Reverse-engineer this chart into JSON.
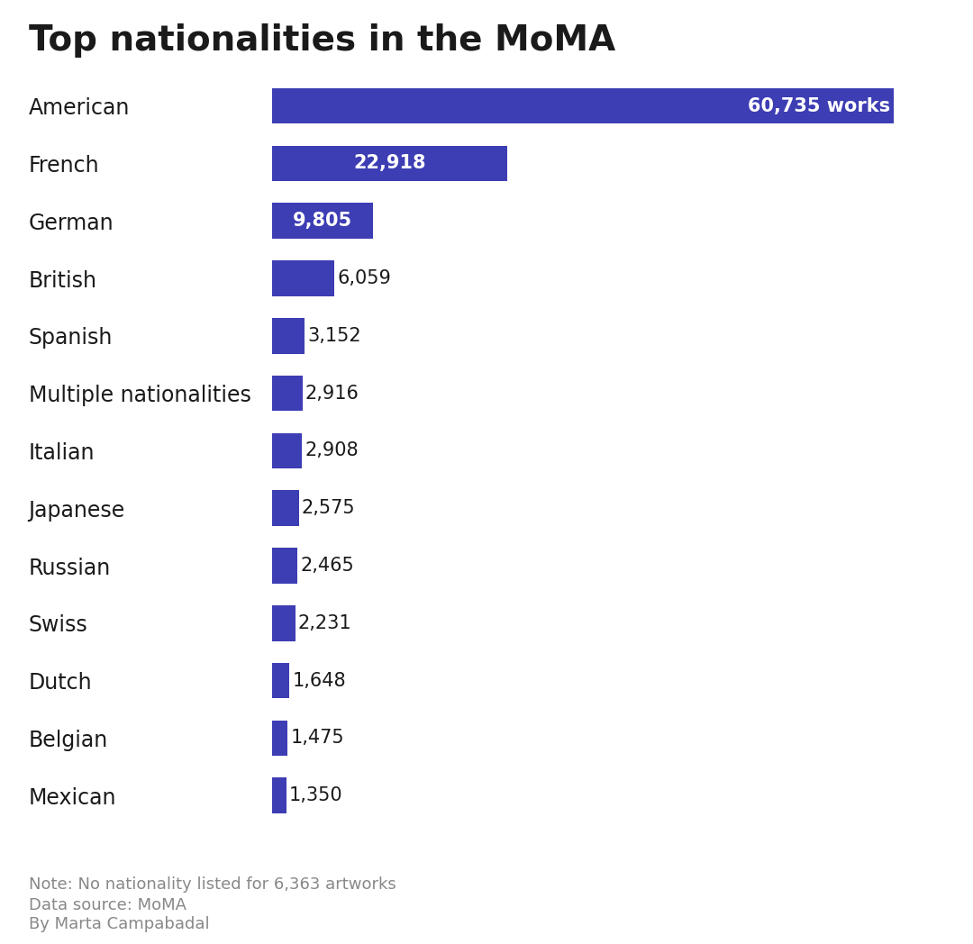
{
  "title": "Top nationalities in the MoMA",
  "categories": [
    "American",
    "French",
    "German",
    "British",
    "Spanish",
    "Multiple nationalities",
    "Italian",
    "Japanese",
    "Russian",
    "Swiss",
    "Dutch",
    "Belgian",
    "Mexican"
  ],
  "values": [
    60735,
    22918,
    9805,
    6059,
    3152,
    2916,
    2908,
    2575,
    2465,
    2231,
    1648,
    1475,
    1350
  ],
  "bar_color": "#3d3db4",
  "labels": [
    "60,735 works",
    "22,918",
    "9,805",
    "6,059",
    "3,152",
    "2,916",
    "2,908",
    "2,575",
    "2,465",
    "2,231",
    "1,648",
    "1,475",
    "1,350"
  ],
  "note": "Note: No nationality listed for 6,363 artworks",
  "data_source": "Data source: MoMA",
  "author": "By Marta Campabadal",
  "title_fontsize": 28,
  "label_fontsize": 15,
  "category_fontsize": 17,
  "note_fontsize": 13,
  "background_color": "#ffffff",
  "text_color_white": "#ffffff",
  "text_color_dark": "#1a1a1a",
  "text_color_note": "#888888"
}
